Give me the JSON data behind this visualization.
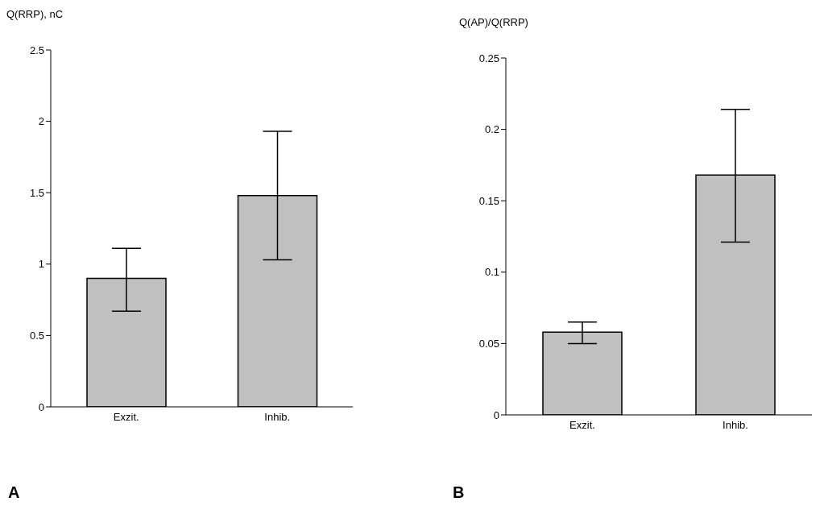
{
  "chart_data": [
    {
      "type": "bar",
      "ylabel": "Q(RRP), nC",
      "categories": [
        "Exzit.",
        "Inhib."
      ],
      "values": [
        0.9,
        1.48
      ],
      "errors": [
        [
          0.67,
          1.11
        ],
        [
          1.03,
          1.93
        ]
      ],
      "color": "#c0c0c0",
      "ylim": [
        0,
        2.5
      ],
      "yticks": [
        0,
        0.5,
        1,
        1.5,
        2,
        2.5
      ],
      "grid": false,
      "legend": false,
      "annotations": [
        "A"
      ]
    },
    {
      "type": "bar",
      "ylabel": "Q(AP)/Q(RRP)",
      "categories": [
        "Exzit.",
        "Inhib."
      ],
      "values": [
        0.058,
        0.168
      ],
      "errors": [
        [
          0.05,
          0.065
        ],
        [
          0.121,
          0.214
        ]
      ],
      "color": "#c0c0c0",
      "ylim": [
        0,
        0.25
      ],
      "yticks": [
        0,
        0.05,
        0.1,
        0.15,
        0.2,
        0.25
      ],
      "grid": false,
      "legend": false,
      "annotations": [
        "B"
      ]
    }
  ]
}
